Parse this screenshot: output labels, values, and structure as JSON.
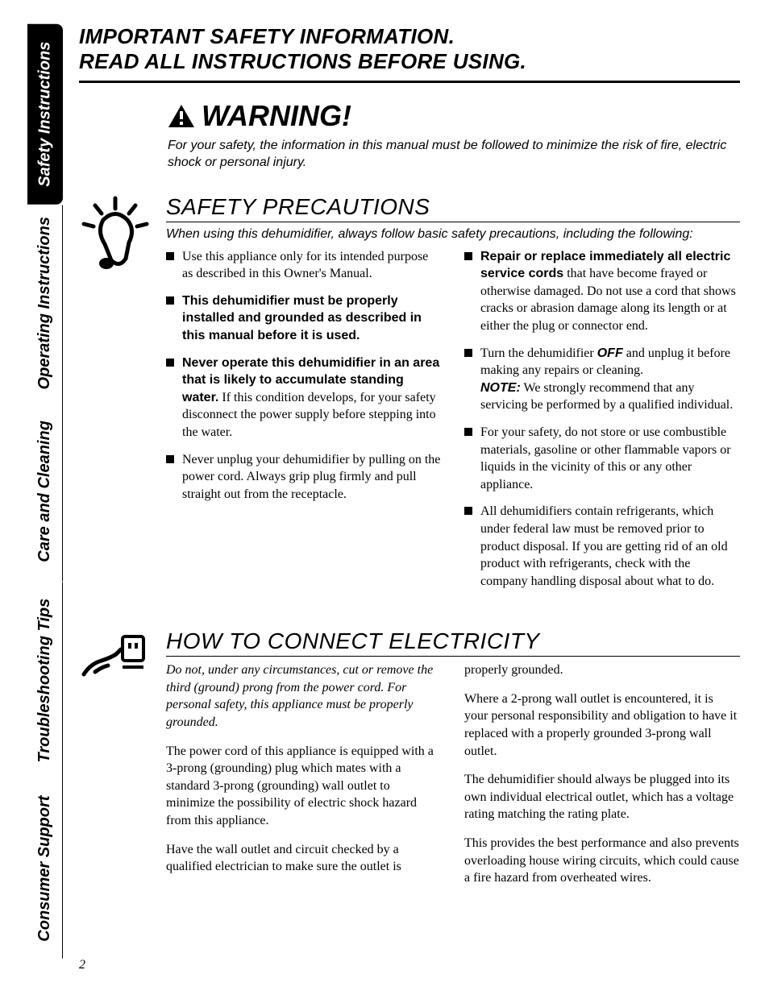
{
  "page_number": "2",
  "sidebar": {
    "tabs": [
      {
        "label": "Safety Instructions",
        "active": true,
        "flex": 1.0
      },
      {
        "label": "Operating Instructions",
        "active": false,
        "flex": 1.1
      },
      {
        "label": "Care and Cleaning",
        "active": false,
        "flex": 1.0
      },
      {
        "label": "Troubleshooting Tips",
        "active": false,
        "flex": 1.1
      },
      {
        "label": "Consumer Support",
        "active": false,
        "flex": 1.0
      }
    ]
  },
  "header": {
    "line1": "IMPORTANT SAFETY INFORMATION.",
    "line2": "READ ALL INSTRUCTIONS BEFORE USING."
  },
  "warning": {
    "heading": "WARNING!",
    "sub": "For your safety, the information in this manual must be followed to minimize the risk of fire, electric shock or personal injury."
  },
  "safety": {
    "title": "SAFETY PRECAUTIONS",
    "intro": "When using this dehumidifier, always follow basic safety precautions, including the following:",
    "bullets": [
      {
        "html": "Use this appliance only for its intended purpose as described in this Owner's Manual."
      },
      {
        "html": "<span class='b'>This dehumidifier must be properly installed and grounded as described in this manual before it is used.</span>"
      },
      {
        "html": "<span class='b'>Never operate this dehumidifier in an area that is likely to accumulate standing water.</span> If this condition develops, for your safety disconnect the power supply before stepping into the water."
      },
      {
        "html": "Never unplug your dehumidifier by pulling on the power cord. Always grip plug firmly and pull straight out from the receptacle."
      },
      {
        "html": "<span class='b'>Repair or replace immediately all electric service cords</span> that have become frayed or otherwise damaged. Do not use a cord that shows cracks or abrasion damage along its length or at either the plug or connector end."
      },
      {
        "html": "Turn the dehumidifier <span class='bi'>OFF</span> and unplug it before making any repairs or cleaning.<br><span class='bi'>NOTE:</span> We strongly recommend that any servicing be performed by a qualified individual."
      },
      {
        "html": "For your safety, do not store or use combustible materials, gasoline or other flammable vapors or liquids in the vicinity of this or any other appliance."
      },
      {
        "html": "All dehumidifiers contain refrigerants, which under federal law must be removed prior to product disposal. If you are getting rid of an old product with refrigerants, check with the company handling disposal about what to do."
      }
    ]
  },
  "electricity": {
    "title": "HOW TO CONNECT ELECTRICITY",
    "intro": "Do not, under any circumstances, cut or remove the third (ground) prong from the power cord. For personal safety, this appliance must be properly grounded.",
    "paras": [
      "The power cord of this appliance is equipped with a 3-prong (grounding) plug which mates with a standard 3-prong (grounding) wall outlet to minimize the possibility of electric shock hazard from this appliance.",
      "Have the wall outlet and circuit checked by a qualified electrician to make sure the outlet is properly grounded.",
      "Where a 2-prong wall outlet is encountered, it is your personal responsibility and obligation to have it replaced with a properly grounded 3-prong wall outlet.",
      "The dehumidifier should always be plugged into its own individual electrical outlet, which has a voltage rating matching the rating plate.",
      "This provides the best performance and also prevents overloading house wiring circuits, which could cause a fire hazard from overheated wires."
    ]
  }
}
